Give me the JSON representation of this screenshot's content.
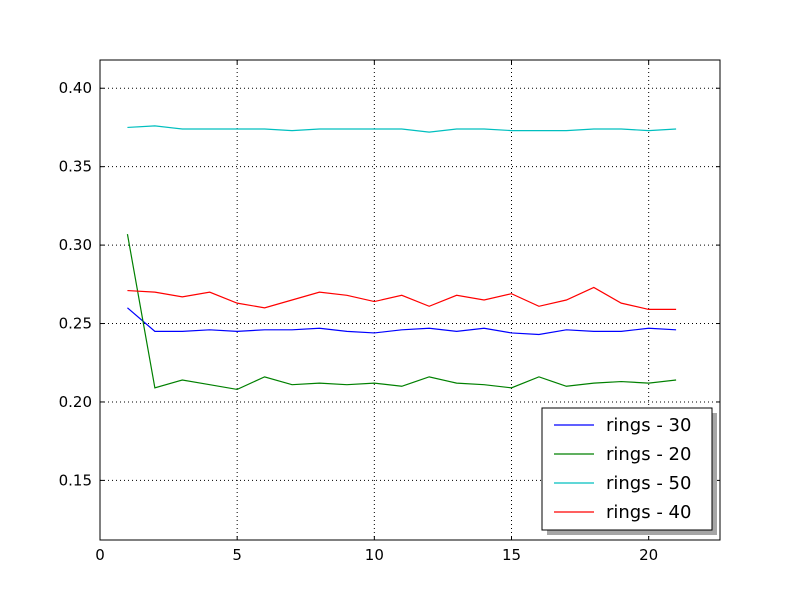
{
  "chart_data": {
    "type": "line",
    "title": "",
    "xlabel": "",
    "ylabel": "",
    "xlim": [
      0,
      22.6
    ],
    "ylim": [
      0.112,
      0.418
    ],
    "xticks": [
      0,
      5,
      10,
      15,
      20
    ],
    "xtick_labels": [
      "0",
      "5",
      "10",
      "15",
      "20"
    ],
    "yticks": [
      0.15,
      0.2,
      0.25,
      0.3,
      0.35,
      0.4
    ],
    "ytick_labels": [
      "0.15",
      "0.20",
      "0.25",
      "0.30",
      "0.35",
      "0.40"
    ],
    "grid": true,
    "legend_position": "bottom-right",
    "x": [
      1,
      2,
      3,
      4,
      5,
      6,
      7,
      8,
      9,
      10,
      11,
      12,
      13,
      14,
      15,
      16,
      17,
      18,
      19,
      20,
      21
    ],
    "series": [
      {
        "name": "rings - 30",
        "color": "#0000ff",
        "values": [
          0.26,
          0.245,
          0.245,
          0.246,
          0.245,
          0.246,
          0.246,
          0.247,
          0.245,
          0.244,
          0.246,
          0.247,
          0.245,
          0.247,
          0.244,
          0.243,
          0.246,
          0.245,
          0.245,
          0.247,
          0.246
        ]
      },
      {
        "name": "rings - 20",
        "color": "#008000",
        "values": [
          0.307,
          0.209,
          0.214,
          0.211,
          0.208,
          0.216,
          0.211,
          0.212,
          0.211,
          0.212,
          0.21,
          0.216,
          0.212,
          0.211,
          0.209,
          0.216,
          0.21,
          0.212,
          0.213,
          0.212,
          0.214
        ]
      },
      {
        "name": "rings - 50",
        "color": "#00bfbf",
        "values": [
          0.375,
          0.376,
          0.374,
          0.374,
          0.374,
          0.374,
          0.373,
          0.374,
          0.374,
          0.374,
          0.374,
          0.372,
          0.374,
          0.374,
          0.373,
          0.373,
          0.373,
          0.374,
          0.374,
          0.373,
          0.374
        ]
      },
      {
        "name": "rings - 40",
        "color": "#ff0000",
        "values": [
          0.271,
          0.27,
          0.267,
          0.27,
          0.263,
          0.26,
          0.265,
          0.27,
          0.268,
          0.264,
          0.268,
          0.261,
          0.268,
          0.265,
          0.269,
          0.261,
          0.265,
          0.273,
          0.263,
          0.259,
          0.259
        ]
      }
    ]
  }
}
